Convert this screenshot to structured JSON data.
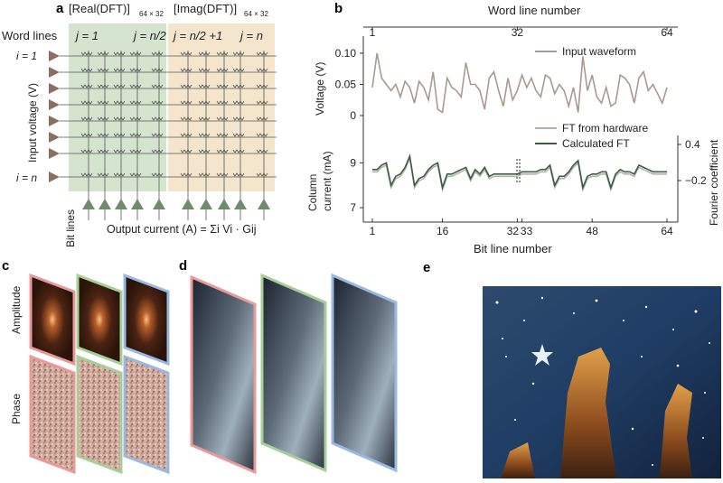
{
  "panels": {
    "a": {
      "letter": "a",
      "real_label": "[Real(DFT)]",
      "real_sub": "64 × 32",
      "imag_label": "[Imag(DFT)]",
      "imag_sub": "64 × 32",
      "word_lines": "Word lines",
      "j1": "j = 1",
      "jn2": "j = n/2",
      "jn2p1": "j = n/2 +1",
      "jn": "j = n",
      "i1": "i = 1",
      "in": "i = n",
      "input_voltage": "Input voltage (V)",
      "bit_lines": "Bit lines",
      "output_current": "Output current (A) = Σi Vi · Gij",
      "colors": {
        "real_bg": "#d5e4cf",
        "imag_bg": "#f3e6cc",
        "arrow": "#8a6e62",
        "triangle": "#6f8c6b"
      }
    },
    "b": {
      "letter": "b",
      "top_axis_label": "Word line number",
      "top_ticks": [
        "1",
        "32",
        "64"
      ],
      "bottom_axis_label": "Bit line number",
      "bottom_ticks": [
        "1",
        "16",
        "32",
        "33",
        "48",
        "64"
      ],
      "voltage_label": "Voltage (V)",
      "voltage_ticks": [
        "0.10",
        "0.05",
        "0"
      ],
      "current_label_1": "Column",
      "current_label_2": "current (mA)",
      "current_ticks": [
        "9",
        "7"
      ],
      "right_label": "Fourier coefficient",
      "right_ticks": [
        "0.4",
        "−0.2"
      ],
      "legend_input": "Input waveform",
      "legend_hw": "FT from hardware",
      "legend_calc": "Calculated FT",
      "colors": {
        "input": "#a89a8f",
        "hw": "#a9b7a4",
        "calc": "#3e5c42"
      }
    },
    "c": {
      "letter": "c",
      "amplitude": "Amplitude",
      "phase": "Phase"
    },
    "d": {
      "letter": "d"
    },
    "e": {
      "letter": "e"
    }
  },
  "chart_data": {
    "type": "line",
    "title": "",
    "x_top_label": "Word line number",
    "x_bottom_label": "Bit line number",
    "series": [
      {
        "name": "Input waveform",
        "x_axis": "word line",
        "y_axis": "Voltage (V)",
        "values": [
          0.045,
          0.1,
          0.06,
          0.05,
          0.04,
          0.05,
          0.03,
          0.055,
          0.045,
          0.02,
          0.055,
          0.045,
          0.025,
          0.07,
          0.01,
          0.005,
          0.06,
          0.045,
          0.04,
          0.03,
          0.085,
          0.05,
          0.05,
          0.04,
          0.01,
          0.06,
          0.07,
          0.04,
          0.015,
          0.06,
          0.025,
          0.04,
          0.065,
          0.045,
          0.06,
          0.04,
          0.03,
          0.065,
          0.06,
          0.035,
          0.05,
          0.04,
          0.015,
          0.045,
          0.005,
          0.095,
          0.04,
          0.065,
          0.03,
          0.02,
          0.045,
          0.015,
          0.02,
          0.065,
          0.06,
          0.05,
          0.02,
          0.06,
          0.07,
          0.04,
          0.05,
          0.035,
          0.02,
          0.045
        ]
      },
      {
        "name": "FT from hardware",
        "x_axis": "bit line",
        "y_axis": "Column current (mA)",
        "values": [
          8.6,
          8.6,
          8.8,
          8.9,
          7.9,
          8.3,
          8.4,
          8.7,
          9.2,
          7.9,
          8.2,
          8.3,
          8.6,
          8.8,
          8.9,
          7.8,
          8.4,
          8.4,
          8.5,
          8.6,
          8.7,
          8.2,
          8.6,
          8.4,
          8.7,
          8.3,
          8.4,
          8.4,
          8.4,
          8.4,
          8.4,
          8.4,
          8.5,
          8.5,
          8.5,
          8.5,
          8.6,
          8.6,
          8.8,
          7.9,
          8.3,
          8.3,
          8.5,
          8.8,
          9.0,
          7.8,
          8.3,
          8.4,
          8.4,
          8.5,
          8.5,
          7.8,
          8.4,
          8.6,
          8.5,
          8.5,
          8.4,
          8.8,
          8.7,
          8.6,
          8.5,
          8.5,
          8.5,
          8.5
        ]
      },
      {
        "name": "Calculated FT",
        "x_axis": "bit line",
        "y_axis": "Column current (mA)",
        "values": [
          8.7,
          8.7,
          8.9,
          9.0,
          8.0,
          8.4,
          8.5,
          8.8,
          9.3,
          8.0,
          8.3,
          8.4,
          8.7,
          8.9,
          9.0,
          7.9,
          8.5,
          8.5,
          8.6,
          8.7,
          8.8,
          8.3,
          8.7,
          8.5,
          8.8,
          8.4,
          8.5,
          8.5,
          8.5,
          8.5,
          8.5,
          8.5,
          8.6,
          8.6,
          8.6,
          8.6,
          8.7,
          8.7,
          8.9,
          8.0,
          8.4,
          8.4,
          8.6,
          8.9,
          9.1,
          7.9,
          8.4,
          8.5,
          8.5,
          8.6,
          8.6,
          7.9,
          8.5,
          8.7,
          8.6,
          8.6,
          8.5,
          8.9,
          8.8,
          8.7,
          8.6,
          8.6,
          8.6,
          8.6
        ]
      }
    ],
    "voltage_ylim": [
      0,
      0.11
    ],
    "current_ylim": [
      7,
      9.5
    ]
  }
}
